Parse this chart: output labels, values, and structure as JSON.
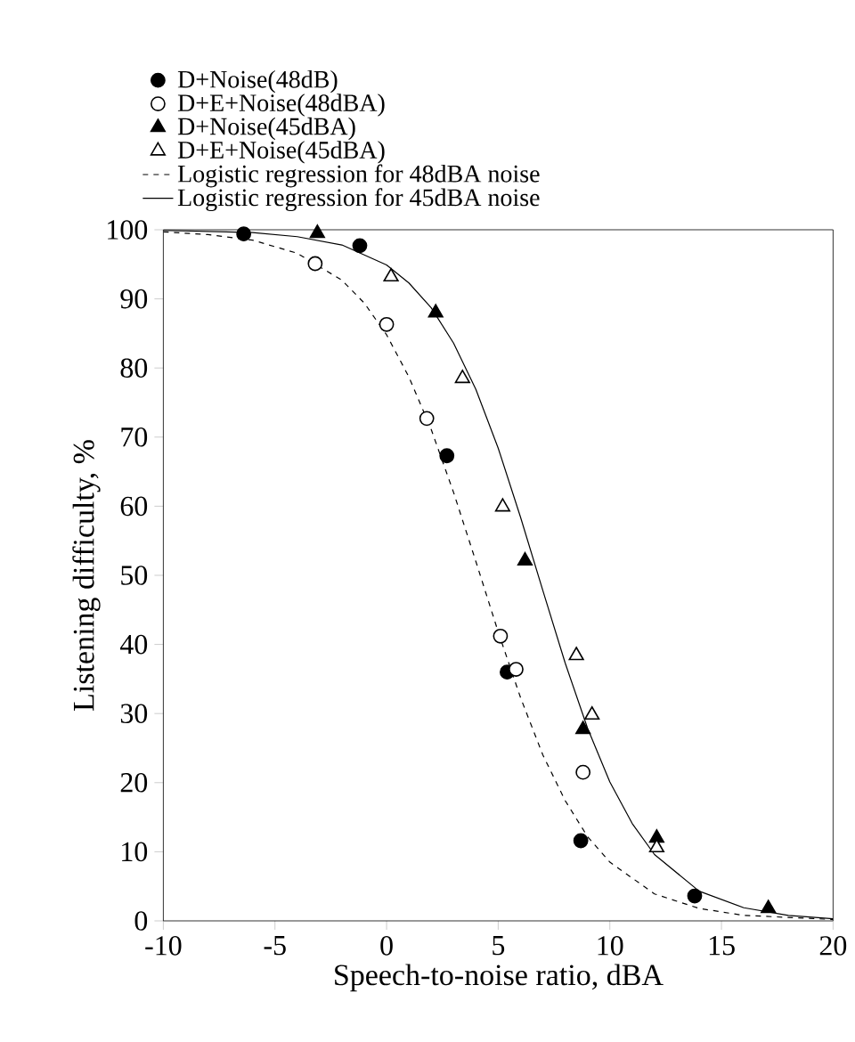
{
  "chart_data": {
    "type": "scatter",
    "xlabel": "Speech-to-noise ratio, dBA",
    "ylabel": "Listening difficulty, %",
    "xlim": [
      -10,
      20
    ],
    "ylim": [
      0,
      100
    ],
    "xticks": [
      -10,
      -5,
      0,
      5,
      10,
      15,
      20
    ],
    "yticks": [
      0,
      10,
      20,
      30,
      40,
      50,
      60,
      70,
      80,
      90,
      100
    ],
    "grid": false,
    "legend": "top left",
    "series": [
      {
        "name": "D+Noise(48dB)",
        "marker": "circle",
        "color": "#000000",
        "x": [
          -6.4,
          -1.2,
          2.7,
          5.4,
          8.7,
          13.8
        ],
        "values": [
          99.4,
          97.7,
          67.3,
          36.0,
          11.6,
          3.6
        ]
      },
      {
        "name": "D+E+Noise(48dBA)",
        "marker": "circle",
        "color": "#ffffff",
        "x": [
          -3.2,
          0.0,
          1.8,
          5.1,
          5.8,
          8.8
        ],
        "values": [
          95.1,
          86.3,
          72.7,
          41.2,
          36.4,
          21.5
        ]
      },
      {
        "name": "D+Noise(45dBA)",
        "marker": "triangle",
        "color": "#000000",
        "x": [
          -3.1,
          2.2,
          6.2,
          8.8,
          12.1,
          17.1
        ],
        "values": [
          99.5,
          88.0,
          52.1,
          27.7,
          12.0,
          1.8
        ]
      },
      {
        "name": "D+E+Noise(45dBA)",
        "marker": "triangle",
        "color": "#ffffff",
        "x": [
          0.2,
          3.4,
          5.2,
          8.5,
          9.2,
          12.1
        ],
        "values": [
          93.2,
          78.5,
          59.9,
          38.4,
          29.8,
          10.6
        ]
      },
      {
        "name": "Logistic regression for 48dBA noise",
        "type": "line",
        "marker": "none",
        "line_style": "dashed",
        "color": "#000000",
        "x": [
          -10,
          -8,
          -6,
          -4,
          -2,
          -1,
          0,
          1,
          2,
          3,
          4,
          5,
          6,
          7,
          8,
          9,
          10,
          12,
          14,
          16,
          20
        ],
        "values": [
          99.7,
          99.3,
          98.5,
          96.6,
          92.7,
          89.4,
          84.8,
          78.7,
          71.1,
          62.0,
          52.0,
          41.8,
          32.3,
          24.0,
          17.4,
          12.2,
          8.5,
          3.9,
          1.8,
          0.8,
          0.2
        ]
      },
      {
        "name": "Logistic regression for 45dBA noise",
        "type": "line",
        "marker": "none",
        "line_style": "solid",
        "color": "#000000",
        "x": [
          -10,
          -6,
          -4,
          -2,
          0,
          1,
          2,
          3,
          4,
          5,
          6,
          7,
          8,
          9,
          10,
          11,
          12,
          14,
          16,
          18,
          20
        ],
        "values": [
          99.9,
          99.6,
          99.0,
          97.8,
          94.9,
          92.3,
          88.7,
          83.6,
          76.9,
          68.4,
          58.4,
          47.8,
          37.3,
          27.9,
          20.1,
          14.1,
          9.6,
          4.3,
          1.9,
          0.8,
          0.3
        ]
      }
    ]
  }
}
